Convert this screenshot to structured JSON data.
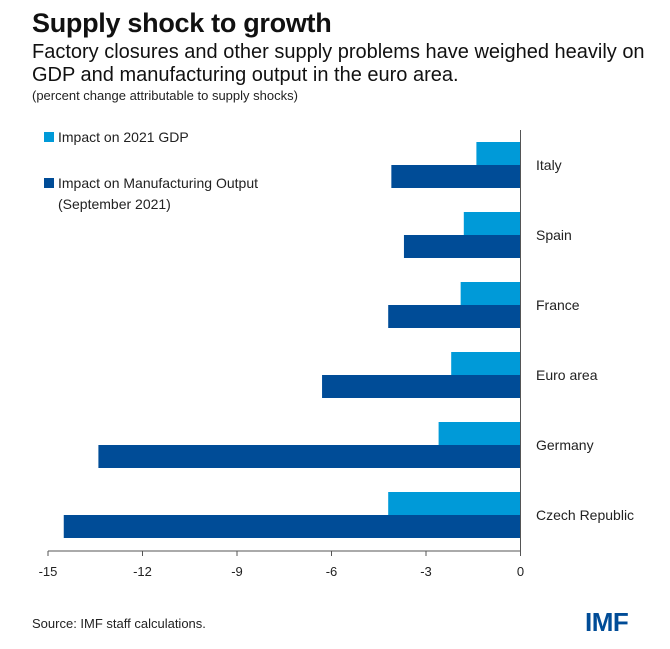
{
  "header": {
    "title": "Supply shock to growth",
    "subtitle": "Factory closures and other supply problems have weighed heavily on GDP and manufacturing output in the euro area.",
    "unit_note": "(percent change attributable to supply shocks)"
  },
  "footer": {
    "source": "Source: IMF staff calculations.",
    "logo": "IMF"
  },
  "chart_data": {
    "type": "bar",
    "orientation": "horizontal",
    "title": "Supply shock to growth",
    "subtitle": "Factory closures and other supply problems have weighed heavily on GDP and manufacturing output in the euro area.",
    "ylabel": "(percent change attributable to supply shocks)",
    "xlabel": "",
    "categories": [
      "Italy",
      "Spain",
      "France",
      "Euro area",
      "Germany",
      "Czech Republic"
    ],
    "series": [
      {
        "name": "Impact on 2021 GDP",
        "color": "#009ad8",
        "values": [
          -1.4,
          -1.8,
          -1.9,
          -2.2,
          -2.6,
          -4.2
        ]
      },
      {
        "name": "Impact on Manufacturing Output (September 2021)",
        "color": "#004c97",
        "values": [
          -4.1,
          -3.7,
          -4.2,
          -6.3,
          -13.4,
          -14.5
        ]
      }
    ],
    "legend_lines": [
      [
        "Impact on 2021 GDP"
      ],
      [
        "Impact on Manufacturing Output",
        "(September 2021)"
      ]
    ],
    "xlim": [
      -15,
      0
    ],
    "xticks": [
      -15,
      -12,
      -9,
      -6,
      -3,
      0
    ],
    "grid": false,
    "legend_position": "top-left"
  }
}
